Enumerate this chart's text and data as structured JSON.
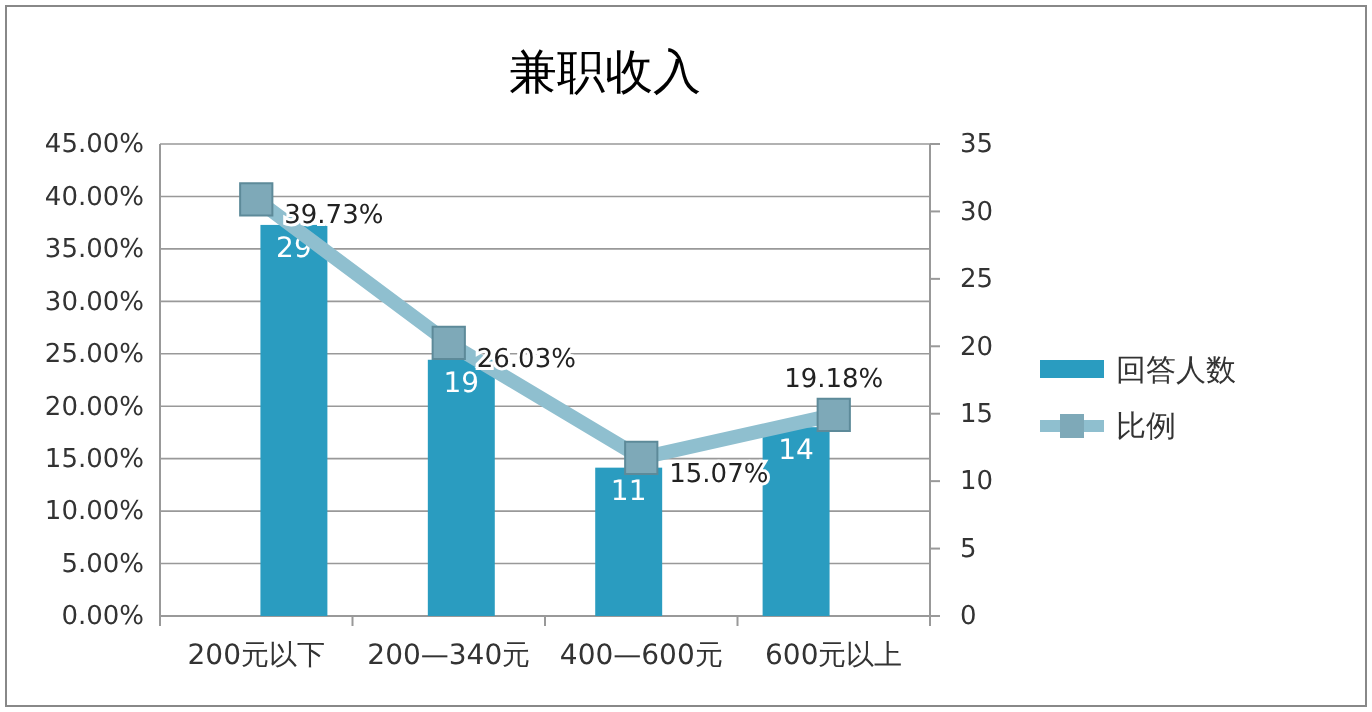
{
  "chart_data": {
    "type": "bar",
    "title": "兼职收入",
    "categories": [
      "200元以下",
      "200—340元",
      "400—600元",
      "600元以上"
    ],
    "series": [
      {
        "name": "回答人数",
        "axis": "y2",
        "color": "#2a9cc0",
        "values": [
          29,
          19,
          11,
          14
        ],
        "value_labels": [
          "29",
          "19",
          "11",
          "14"
        ]
      },
      {
        "name": "比例",
        "type": "line",
        "axis": "y",
        "color": "#8fbfcf",
        "marker": "square",
        "values": [
          39.73,
          26.03,
          15.07,
          19.18
        ],
        "value_labels": [
          "39.73%",
          "26.03%",
          "15.07%",
          "19.18%"
        ]
      }
    ],
    "ylim": [
      0,
      45
    ],
    "yticks": [
      {
        "value": 0,
        "label": "0.00%"
      },
      {
        "value": 5,
        "label": "5.00%"
      },
      {
        "value": 10,
        "label": "10.00%"
      },
      {
        "value": 15,
        "label": "15.00%"
      },
      {
        "value": 20,
        "label": "20.00%"
      },
      {
        "value": 25,
        "label": "25.00%"
      },
      {
        "value": 30,
        "label": "30.00%"
      },
      {
        "value": 35,
        "label": "35.00%"
      },
      {
        "value": 40,
        "label": "40.00%"
      },
      {
        "value": 45,
        "label": "45.00%"
      }
    ],
    "y2lim": [
      0,
      35
    ],
    "y2ticks": [
      0,
      5,
      10,
      15,
      20,
      25,
      30,
      35
    ],
    "grid": "y",
    "legend": "right"
  }
}
